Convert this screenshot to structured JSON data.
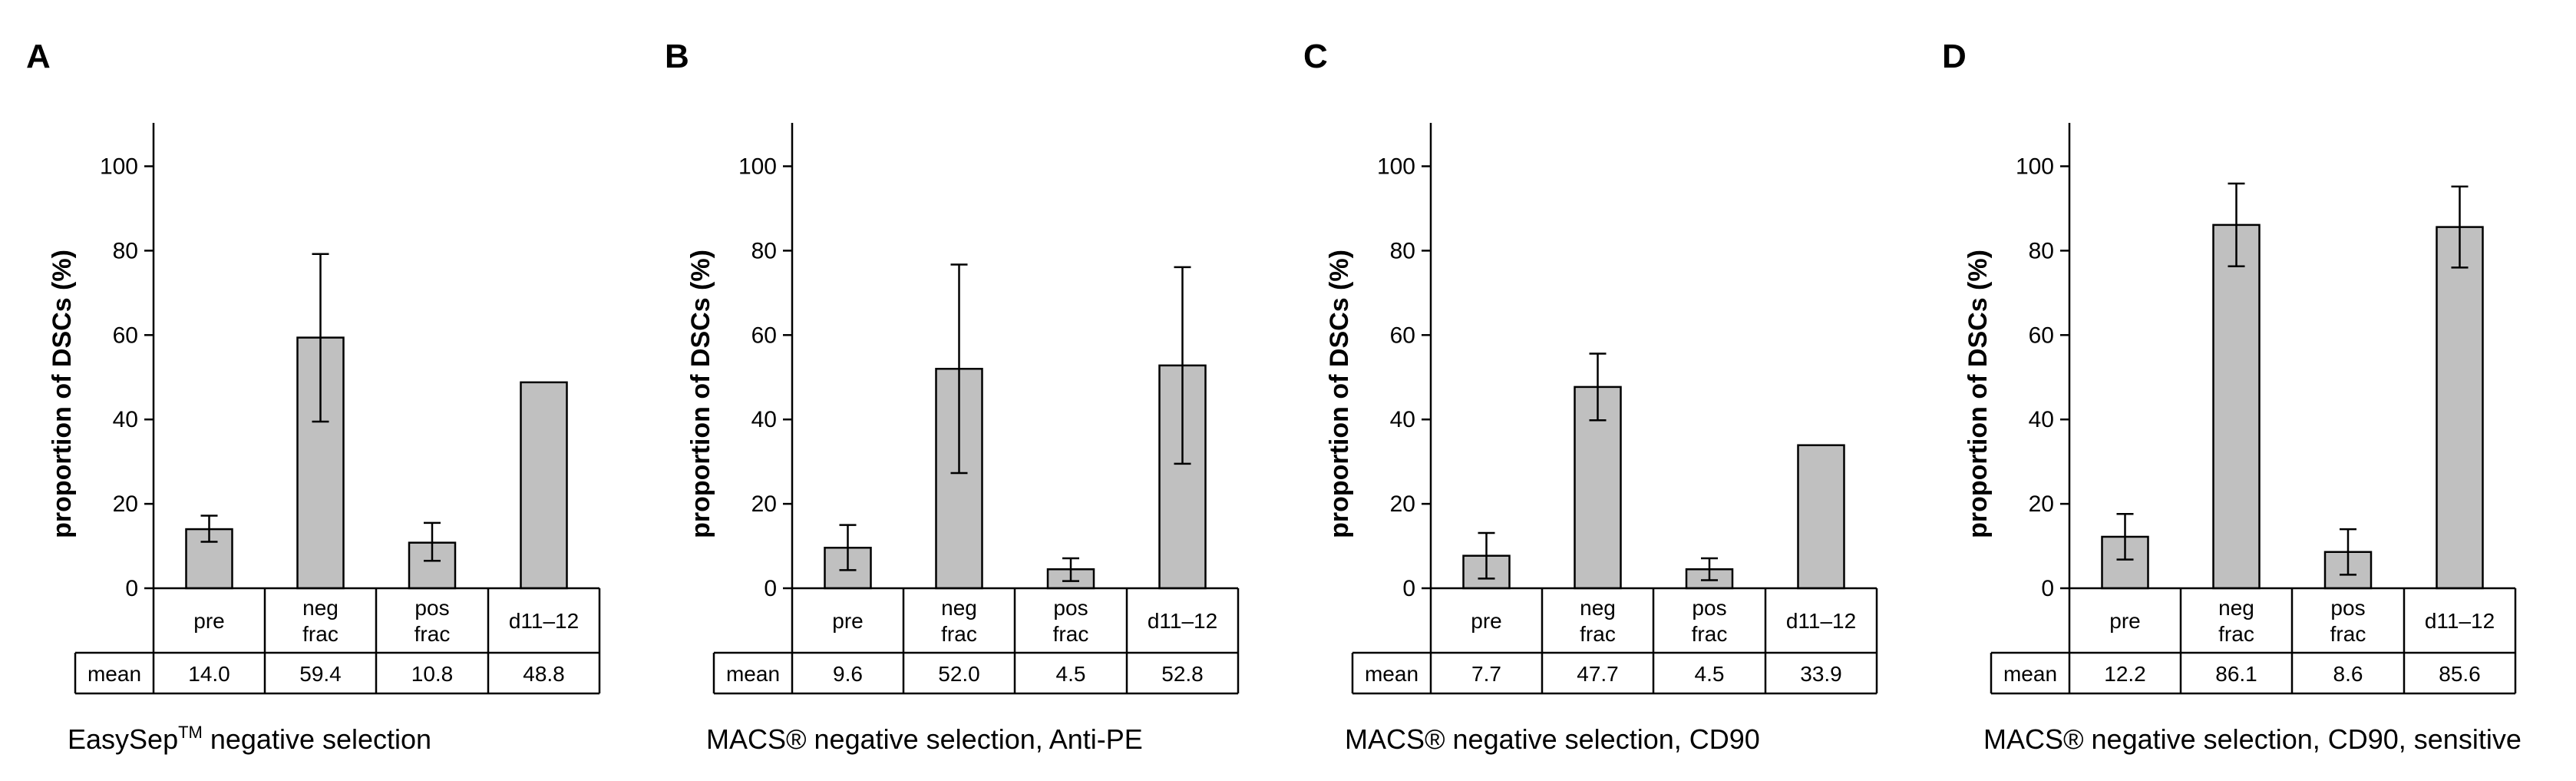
{
  "figure": {
    "y_axis_label": "proportion of DSCs (%)",
    "mean_row_label": "mean"
  },
  "chart_data": [
    {
      "type": "bar",
      "panel": "A",
      "caption": "EasySep",
      "caption_sup": "TM",
      "caption_rest": " negative selection",
      "categories": [
        [
          "pre"
        ],
        [
          "neg",
          "frac"
        ],
        [
          "pos",
          "frac"
        ],
        [
          "d11–12"
        ]
      ],
      "values": [
        14.0,
        59.4,
        10.8,
        48.8
      ],
      "mean_labels": [
        "14.0",
        "59.4",
        "10.8",
        "48.8"
      ],
      "error_low": [
        11.0,
        39.5,
        6.5,
        null
      ],
      "error_high": [
        17.2,
        79.2,
        15.5,
        null
      ],
      "ylabel": "proportion of DSCs (%)",
      "ylim": [
        0,
        110
      ],
      "yticks": [
        0,
        20,
        40,
        60,
        80,
        100
      ],
      "bar_color": "#c0c0c0"
    },
    {
      "type": "bar",
      "panel": "B",
      "caption": "MACS® negative selection, Anti-PE",
      "caption_sup": "",
      "caption_rest": "",
      "categories": [
        [
          "pre"
        ],
        [
          "neg",
          "frac"
        ],
        [
          "pos",
          "frac"
        ],
        [
          "d11–12"
        ]
      ],
      "values": [
        9.6,
        52.0,
        4.5,
        52.8
      ],
      "mean_labels": [
        "9.6",
        "52.0",
        "4.5",
        "52.8"
      ],
      "error_low": [
        4.3,
        27.3,
        1.7,
        29.5
      ],
      "error_high": [
        15.0,
        76.7,
        7.1,
        76.1
      ],
      "ylabel": "proportion of DSCs (%)",
      "ylim": [
        0,
        110
      ],
      "yticks": [
        0,
        20,
        40,
        60,
        80,
        100
      ],
      "bar_color": "#c0c0c0"
    },
    {
      "type": "bar",
      "panel": "C",
      "caption": "MACS® negative selection, CD90",
      "caption_sup": "",
      "caption_rest": "",
      "categories": [
        [
          "pre"
        ],
        [
          "neg",
          "frac"
        ],
        [
          "pos",
          "frac"
        ],
        [
          "d11–12"
        ]
      ],
      "values": [
        7.7,
        47.7,
        4.5,
        33.9
      ],
      "mean_labels": [
        "7.7",
        "47.7",
        "4.5",
        "33.9"
      ],
      "error_low": [
        2.3,
        39.8,
        1.9,
        null
      ],
      "error_high": [
        13.1,
        55.6,
        7.1,
        null
      ],
      "ylabel": "proportion of DSCs (%)",
      "ylim": [
        0,
        110
      ],
      "yticks": [
        0,
        20,
        40,
        60,
        80,
        100
      ],
      "bar_color": "#c0c0c0"
    },
    {
      "type": "bar",
      "panel": "D",
      "caption": "MACS® negative selection, CD90, sensitive",
      "caption_sup": "",
      "caption_rest": "",
      "categories": [
        [
          "pre"
        ],
        [
          "neg",
          "frac"
        ],
        [
          "pos",
          "frac"
        ],
        [
          "d11–12"
        ]
      ],
      "values": [
        12.2,
        86.1,
        8.6,
        85.6
      ],
      "mean_labels": [
        "12.2",
        "86.1",
        "8.6",
        "85.6"
      ],
      "error_low": [
        6.8,
        76.3,
        3.2,
        76.0
      ],
      "error_high": [
        17.6,
        95.9,
        14.0,
        95.2
      ],
      "ylabel": "proportion of DSCs (%)",
      "ylim": [
        0,
        110
      ],
      "yticks": [
        0,
        20,
        40,
        60,
        80,
        100
      ],
      "bar_color": "#c0c0c0"
    }
  ]
}
